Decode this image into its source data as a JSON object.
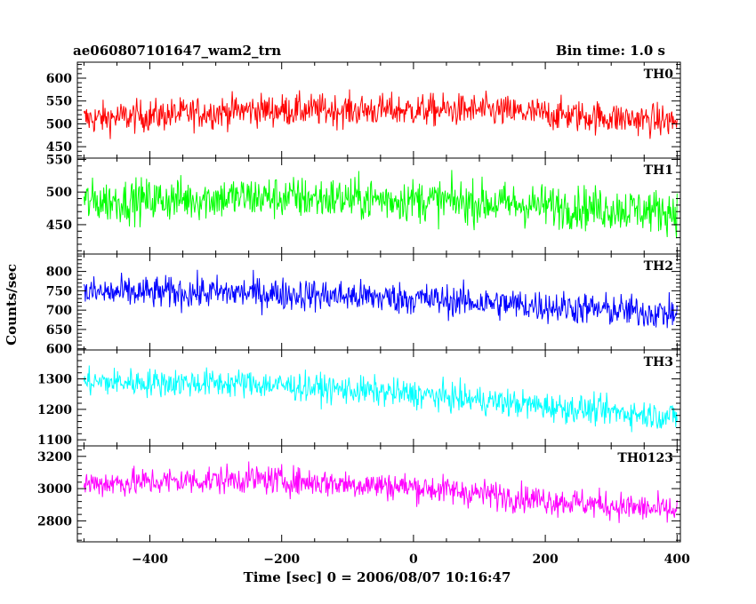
{
  "chart_data": {
    "type": "line",
    "title": "ae060807101647_wam2_trn",
    "subtitle": "Bin time: 1.0 s",
    "xlabel": "Time [sec] 0 = 2006/08/07 10:16:47",
    "ylabel": "Counts/sec",
    "xlim": [
      -510,
      405
    ],
    "x_ticks": [
      -400,
      -200,
      0,
      200,
      400
    ],
    "x_tick_labels": [
      "−400",
      "−200",
      "0",
      "200",
      "400"
    ],
    "grid": false,
    "panels": [
      {
        "name": "TH0",
        "color": "#ff0000",
        "ylim": [
          425,
          635
        ],
        "yticks": [
          450,
          500,
          550,
          600
        ],
        "ytick_labels": [
          "450",
          "500",
          "550",
          "600"
        ],
        "trend": [
          [
            -500,
            510
          ],
          [
            -250,
            530
          ],
          [
            100,
            530
          ],
          [
            400,
            505
          ]
        ],
        "noise": 32,
        "min": 430,
        "max": 632
      },
      {
        "name": "TH1",
        "color": "#00ff00",
        "ylim": [
          405,
          552
        ],
        "yticks": [
          450,
          500,
          550
        ],
        "ytick_labels": [
          "450",
          "500",
          "550"
        ],
        "trend": [
          [
            -500,
            485
          ],
          [
            -250,
            492
          ],
          [
            0,
            488
          ],
          [
            400,
            470
          ]
        ],
        "noise": 30,
        "min": 408,
        "max": 550
      },
      {
        "name": "TH2",
        "color": "#0000ff",
        "ylim": [
          597,
          845
        ],
        "yticks": [
          600,
          650,
          700,
          750,
          800
        ],
        "ytick_labels": [
          "600",
          "650",
          "700",
          "750",
          "800"
        ],
        "trend": [
          [
            -500,
            745
          ],
          [
            -250,
            745
          ],
          [
            0,
            730
          ],
          [
            200,
            710
          ],
          [
            400,
            690
          ]
        ],
        "noise": 38,
        "min": 600,
        "max": 843
      },
      {
        "name": "TH3",
        "color": "#00ffff",
        "ylim": [
          1080,
          1395
        ],
        "yticks": [
          1100,
          1200,
          1300
        ],
        "ytick_labels": [
          "1100",
          "1200",
          "1300"
        ],
        "trend": [
          [
            -500,
            1290
          ],
          [
            -250,
            1285
          ],
          [
            0,
            1250
          ],
          [
            200,
            1210
          ],
          [
            400,
            1175
          ]
        ],
        "noise": 42,
        "min": 1085,
        "max": 1393
      },
      {
        "name": "TH0123",
        "color": "#ff00ff",
        "ylim": [
          2670,
          3265
        ],
        "yticks": [
          2800,
          3000,
          3200
        ],
        "ytick_labels": [
          "2800",
          "3000",
          "3200"
        ],
        "trend": [
          [
            -500,
            3030
          ],
          [
            -250,
            3060
          ],
          [
            0,
            3010
          ],
          [
            200,
            2930
          ],
          [
            400,
            2860
          ]
        ],
        "noise": 80,
        "min": 2680,
        "max": 3262
      }
    ]
  }
}
